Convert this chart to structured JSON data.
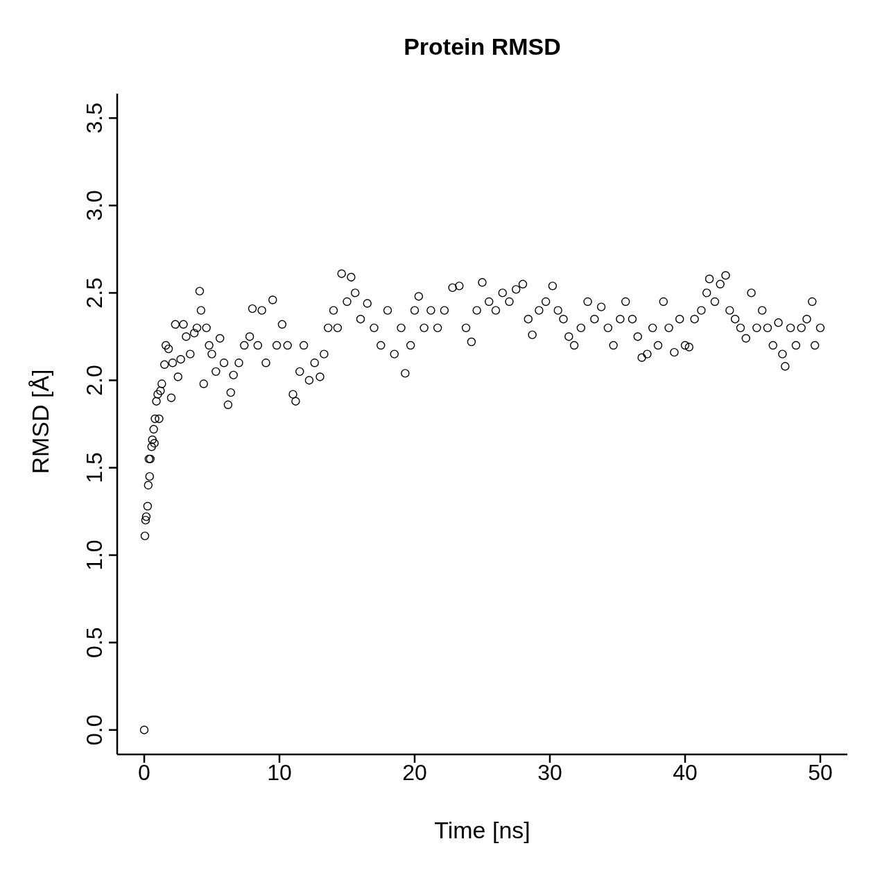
{
  "chart_data": {
    "type": "scatter",
    "title": "Protein RMSD",
    "xlabel": "Time [ns]",
    "ylabel": "RMSD [Å]",
    "xlim": [
      -2,
      52
    ],
    "xticks": [
      0,
      10,
      20,
      30,
      40,
      50
    ],
    "ylim": [
      -0.14,
      3.64
    ],
    "yticks": [
      {
        "value": 0,
        "label": "0.0"
      },
      {
        "value": 0.5,
        "label": "0.5"
      },
      {
        "value": 1,
        "label": "1.0"
      },
      {
        "value": 1.5,
        "label": "1.5"
      },
      {
        "value": 2,
        "label": "2.0"
      },
      {
        "value": 2.5,
        "label": "2.5"
      },
      {
        "value": 3,
        "label": "3.0"
      },
      {
        "value": 3.5,
        "label": "3.5"
      }
    ],
    "marker": "circle",
    "grid": false,
    "legend": false,
    "series": [
      {
        "color": "#000000",
        "x": [
          0,
          0.05,
          0.1,
          0.15,
          0.25,
          0.3,
          0.4,
          0.35,
          0.45,
          0.55,
          0.6,
          0.7,
          0.75,
          0.8,
          0.9,
          1.0,
          1.1,
          1.2,
          1.3,
          1.5,
          1.6,
          1.8,
          2.0,
          2.1,
          2.3,
          2.5,
          2.7,
          2.9,
          3.1,
          3.4,
          3.7,
          3.9,
          4.1,
          4.2,
          4.4,
          4.6,
          4.8,
          5.0,
          5.3,
          5.6,
          5.9,
          6.2,
          6.4,
          6.6,
          7.0,
          7.4,
          7.8,
          8.0,
          8.4,
          8.7,
          9.0,
          9.5,
          9.8,
          10.2,
          10.6,
          11.0,
          11.2,
          11.5,
          11.8,
          12.2,
          12.6,
          13.0,
          13.3,
          13.6,
          14.0,
          14.3,
          14.6,
          15.0,
          15.3,
          15.6,
          16.0,
          16.5,
          17.0,
          17.5,
          18.0,
          18.5,
          19.0,
          19.3,
          19.7,
          20.0,
          20.3,
          20.7,
          21.2,
          21.7,
          22.2,
          22.8,
          23.3,
          23.8,
          24.2,
          24.6,
          25.0,
          25.5,
          26.0,
          26.5,
          27.0,
          27.5,
          28.0,
          28.4,
          28.7,
          29.2,
          29.7,
          30.2,
          30.6,
          31.0,
          31.4,
          31.8,
          32.3,
          32.8,
          33.3,
          33.8,
          34.3,
          34.7,
          35.2,
          35.6,
          36.1,
          36.5,
          36.8,
          37.2,
          37.6,
          38.0,
          38.4,
          38.8,
          39.2,
          39.6,
          40.0,
          40.3,
          40.7,
          41.2,
          41.6,
          41.8,
          42.2,
          42.6,
          43.0,
          43.3,
          43.7,
          44.1,
          44.5,
          44.9,
          45.3,
          45.7,
          46.1,
          46.5,
          46.9,
          47.2,
          47.4,
          47.8,
          48.2,
          48.6,
          49.0,
          49.4,
          49.6,
          50.0
        ],
        "values": [
          0,
          1.11,
          1.2,
          1.22,
          1.28,
          1.4,
          1.45,
          1.55,
          1.55,
          1.62,
          1.66,
          1.72,
          1.64,
          1.78,
          1.88,
          1.92,
          1.78,
          1.94,
          1.98,
          2.09,
          2.2,
          2.18,
          1.9,
          2.1,
          2.32,
          2.02,
          2.12,
          2.32,
          2.25,
          2.15,
          2.27,
          2.3,
          2.51,
          2.4,
          1.98,
          2.3,
          2.2,
          2.15,
          2.05,
          2.24,
          2.1,
          1.86,
          1.93,
          2.03,
          2.1,
          2.2,
          2.25,
          2.41,
          2.2,
          2.4,
          2.1,
          2.46,
          2.2,
          2.32,
          2.2,
          1.92,
          1.88,
          2.05,
          2.2,
          2.0,
          2.1,
          2.02,
          2.15,
          2.3,
          2.4,
          2.3,
          2.61,
          2.45,
          2.59,
          2.5,
          2.35,
          2.44,
          2.3,
          2.2,
          2.4,
          2.15,
          2.3,
          2.04,
          2.2,
          2.4,
          2.48,
          2.3,
          2.4,
          2.3,
          2.4,
          2.53,
          2.54,
          2.3,
          2.22,
          2.4,
          2.56,
          2.45,
          2.4,
          2.5,
          2.45,
          2.52,
          2.55,
          2.35,
          2.26,
          2.4,
          2.45,
          2.54,
          2.4,
          2.35,
          2.25,
          2.2,
          2.3,
          2.45,
          2.35,
          2.42,
          2.3,
          2.2,
          2.35,
          2.45,
          2.35,
          2.25,
          2.13,
          2.15,
          2.3,
          2.2,
          2.45,
          2.3,
          2.16,
          2.35,
          2.2,
          2.19,
          2.35,
          2.4,
          2.5,
          2.58,
          2.45,
          2.55,
          2.6,
          2.4,
          2.35,
          2.3,
          2.24,
          2.5,
          2.3,
          2.4,
          2.3,
          2.2,
          2.33,
          2.15,
          2.08,
          2.3,
          2.2,
          2.3,
          2.35,
          2.45,
          2.2,
          2.3
        ]
      }
    ]
  }
}
